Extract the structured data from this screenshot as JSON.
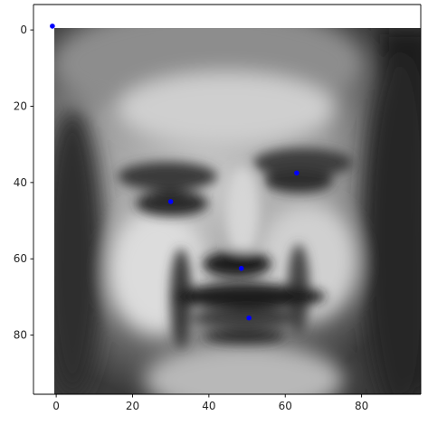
{
  "chart_data": {
    "type": "scatter",
    "title": "",
    "xlabel": "",
    "ylabel": "",
    "xlim": [
      -5.5,
      95.5
    ],
    "ylim": [
      95.5,
      -1
    ],
    "y_inverted": true,
    "image": {
      "kind": "grayscale face photograph",
      "extent": [
        -0.5,
        95.5,
        95.5,
        -0.5
      ]
    },
    "x_ticks": [
      {
        "value": 0,
        "label": "0"
      },
      {
        "value": 20,
        "label": "20"
      },
      {
        "value": 40,
        "label": "40"
      },
      {
        "value": 60,
        "label": "60"
      },
      {
        "value": 80,
        "label": "80"
      }
    ],
    "y_ticks": [
      {
        "value": 0,
        "label": "0"
      },
      {
        "value": 20,
        "label": "20"
      },
      {
        "value": 40,
        "label": "40"
      },
      {
        "value": 60,
        "label": "60"
      },
      {
        "value": 80,
        "label": "80"
      }
    ],
    "points": [
      {
        "x": -1,
        "y": -1
      },
      {
        "x": 30,
        "y": 45
      },
      {
        "x": 63,
        "y": 37.5
      },
      {
        "x": 48.5,
        "y": 62.5
      },
      {
        "x": 50.5,
        "y": 75.5
      }
    ],
    "marker_color": "#0000ff",
    "grid": false
  }
}
